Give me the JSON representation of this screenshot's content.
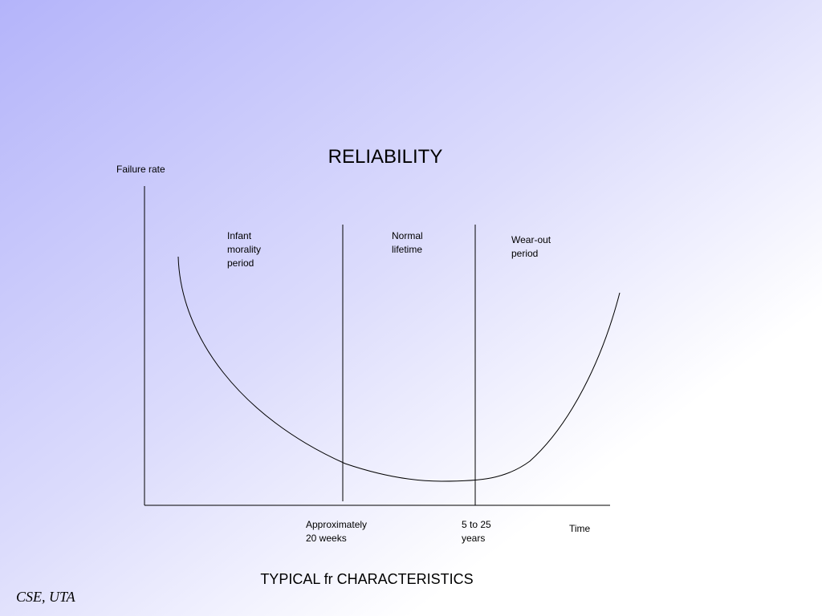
{
  "title": "RELIABILITY",
  "y_axis_label": "Failure rate",
  "x_axis_label": "Time",
  "regions": [
    {
      "lines": [
        "Infant",
        "morality",
        "period"
      ]
    },
    {
      "lines": [
        "Normal",
        "lifetime"
      ]
    },
    {
      "lines": [
        "Wear-out",
        "period"
      ]
    }
  ],
  "boundaries": [
    {
      "lines": [
        "Approximately",
        "20 weeks"
      ]
    },
    {
      "lines": [
        "5 to 25",
        "years"
      ]
    }
  ],
  "caption": "TYPICAL fr CHARACTERISTICS",
  "footer": "CSE, UTA"
}
